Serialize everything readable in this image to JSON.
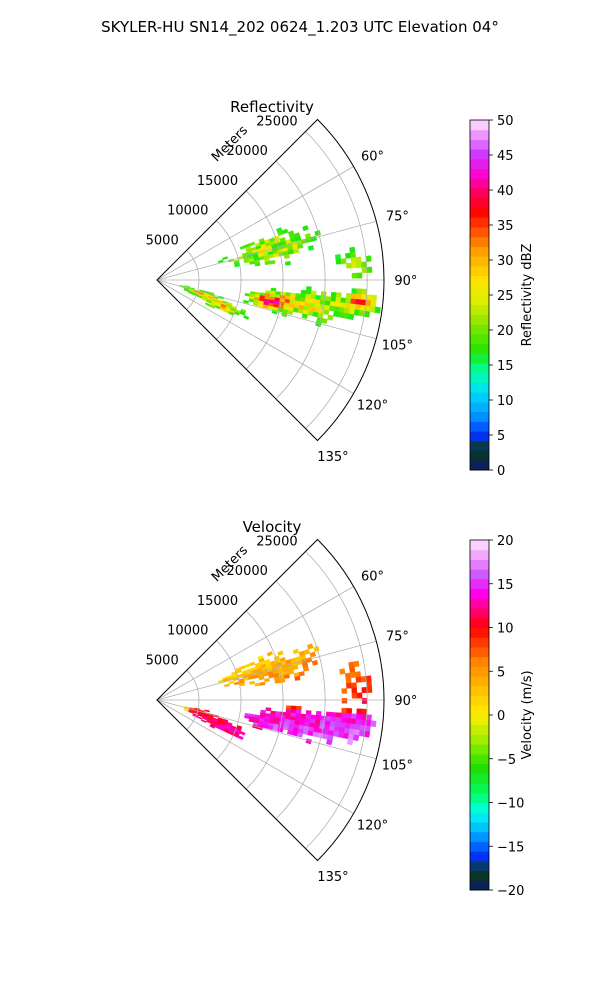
{
  "figure": {
    "suptitle": "SKYLER-HU  SN14_202  0624_1.203 UTC Elevation 04°",
    "range_label": "Meters"
  },
  "chart_data": [
    {
      "type": "heatmap",
      "title": "Reflectivity",
      "coordinate_system": "polar sector",
      "range_ticks": [
        5000,
        10000,
        15000,
        20000,
        25000
      ],
      "range_tick_labels": [
        "5000",
        "10000",
        "15000",
        "20000",
        "25000"
      ],
      "rmax": 27000,
      "azimuth_ticks": [
        60,
        75,
        90,
        105,
        120,
        135
      ],
      "azimuth_tick_labels": [
        "60°",
        "75°",
        "90°",
        "105°",
        "120°",
        "135°"
      ],
      "azimuth_range": [
        45,
        135
      ],
      "grid": true,
      "colorbar": {
        "label": "Reflectivity dBZ",
        "min": 0,
        "max": 50,
        "ticks": [
          0,
          5,
          10,
          15,
          20,
          25,
          30,
          35,
          40,
          45,
          50
        ],
        "tick_labels": [
          "0",
          "5",
          "10",
          "15",
          "20",
          "25",
          "30",
          "35",
          "40",
          "45",
          "50"
        ],
        "colormap": "pyart_NWSRef-like",
        "stops": [
          {
            "v": 0,
            "c": "#0b1a6b"
          },
          {
            "v": 3,
            "c": "#0a3a18"
          },
          {
            "v": 5,
            "c": "#0033ff"
          },
          {
            "v": 8,
            "c": "#0099ff"
          },
          {
            "v": 11,
            "c": "#00d9ff"
          },
          {
            "v": 14,
            "c": "#00ffaa"
          },
          {
            "v": 17,
            "c": "#22e600"
          },
          {
            "v": 21,
            "c": "#8ce600"
          },
          {
            "v": 24,
            "c": "#d9ef00"
          },
          {
            "v": 27,
            "c": "#ffe400"
          },
          {
            "v": 31,
            "c": "#ffa600"
          },
          {
            "v": 34,
            "c": "#ff5500"
          },
          {
            "v": 37,
            "c": "#ff0000"
          },
          {
            "v": 40,
            "c": "#ff0066"
          },
          {
            "v": 42,
            "c": "#ff00cc"
          },
          {
            "v": 45,
            "c": "#cc33ff"
          },
          {
            "v": 48,
            "c": "#ee99ff"
          },
          {
            "v": 50,
            "c": "#fde8ff"
          }
        ]
      }
    },
    {
      "type": "heatmap",
      "title": "Velocity",
      "coordinate_system": "polar sector",
      "range_ticks": [
        5000,
        10000,
        15000,
        20000,
        25000
      ],
      "range_tick_labels": [
        "5000",
        "10000",
        "15000",
        "20000",
        "25000"
      ],
      "rmax": 27000,
      "azimuth_ticks": [
        60,
        75,
        90,
        105,
        120,
        135
      ],
      "azimuth_tick_labels": [
        "60°",
        "75°",
        "90°",
        "105°",
        "120°",
        "135°"
      ],
      "azimuth_range": [
        45,
        135
      ],
      "grid": true,
      "colorbar": {
        "label": "Velocity (m/s)",
        "min": -20,
        "max": 20,
        "ticks": [
          -20,
          -15,
          -10,
          -5,
          0,
          5,
          10,
          15,
          20
        ],
        "tick_labels": [
          "−20",
          "−15",
          "−10",
          "−5",
          "0",
          "5",
          "10",
          "15",
          "20"
        ],
        "colormap": "pyart_BuDRd18-like",
        "stops": [
          {
            "v": -20,
            "c": "#0b1a6b"
          },
          {
            "v": -18,
            "c": "#0a3a18"
          },
          {
            "v": -16,
            "c": "#0033ff"
          },
          {
            "v": -13,
            "c": "#00bfff"
          },
          {
            "v": -11,
            "c": "#00ffee"
          },
          {
            "v": -9,
            "c": "#00ff66"
          },
          {
            "v": -6,
            "c": "#22dd00"
          },
          {
            "v": -3,
            "c": "#99ee00"
          },
          {
            "v": 0,
            "c": "#ffee00"
          },
          {
            "v": 3,
            "c": "#ffc000"
          },
          {
            "v": 6,
            "c": "#ff8800"
          },
          {
            "v": 8,
            "c": "#ff4400"
          },
          {
            "v": 10,
            "c": "#ff0000"
          },
          {
            "v": 12,
            "c": "#ff0077"
          },
          {
            "v": 14,
            "c": "#ff00ee"
          },
          {
            "v": 16,
            "c": "#cc55ff"
          },
          {
            "v": 18,
            "c": "#ee99ff"
          },
          {
            "v": 20,
            "c": "#fde8ff"
          }
        ]
      }
    }
  ]
}
